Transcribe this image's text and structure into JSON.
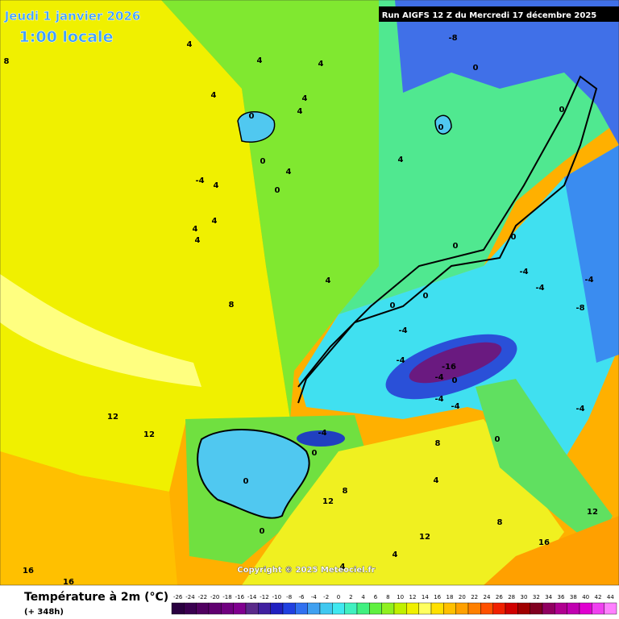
{
  "header": {
    "date": "Jeudi 1 janvier 2026",
    "time": "1:00 locale",
    "run": "Run AIGFS 12 Z du Mercredi 17 décembre 2025"
  },
  "copyright": "Copyright © 2025 Meteociel.fr",
  "contour_labels": [
    8,
    4,
    4,
    4,
    4,
    4,
    4,
    0,
    0,
    4,
    0,
    4,
    -4,
    4,
    4,
    4,
    4,
    4,
    8,
    -8,
    0,
    0,
    0,
    0,
    0,
    -4,
    -4,
    -4,
    -8,
    0,
    0,
    -4,
    -4,
    -16,
    -4,
    0,
    -4,
    -4,
    12,
    12,
    -4,
    0,
    8,
    0,
    8,
    12,
    4,
    0,
    12,
    8,
    16,
    16,
    16,
    4,
    4,
    12,
    -4,
    0
  ],
  "legend": {
    "title": "Température à 2m (°C)",
    "subtitle": "(+ 348h)",
    "ticks": [
      -26,
      -24,
      -22,
      -20,
      -18,
      -16,
      -14,
      -12,
      -10,
      -8,
      -6,
      -4,
      -2,
      0,
      2,
      4,
      6,
      8,
      10,
      12,
      14,
      16,
      18,
      20,
      22,
      24,
      26,
      28,
      30,
      32,
      34,
      36,
      38,
      40,
      42,
      44
    ],
    "colors": [
      "#2a0040",
      "#3a0050",
      "#500060",
      "#600070",
      "#700080",
      "#800090",
      "#5a2a8a",
      "#4020a0",
      "#2020c0",
      "#2040e0",
      "#3070f0",
      "#40a0f0",
      "#40c8f0",
      "#40e8f0",
      "#40f0c0",
      "#40f080",
      "#60f040",
      "#90f020",
      "#c0f000",
      "#f0f000",
      "#ffff60",
      "#ffe000",
      "#ffc000",
      "#ffa000",
      "#ff8000",
      "#ff5000",
      "#f02000",
      "#d00000",
      "#a00000",
      "#800020",
      "#900060",
      "#b00090",
      "#c000b0",
      "#e000d0",
      "#f040f0",
      "#ff80ff"
    ]
  }
}
